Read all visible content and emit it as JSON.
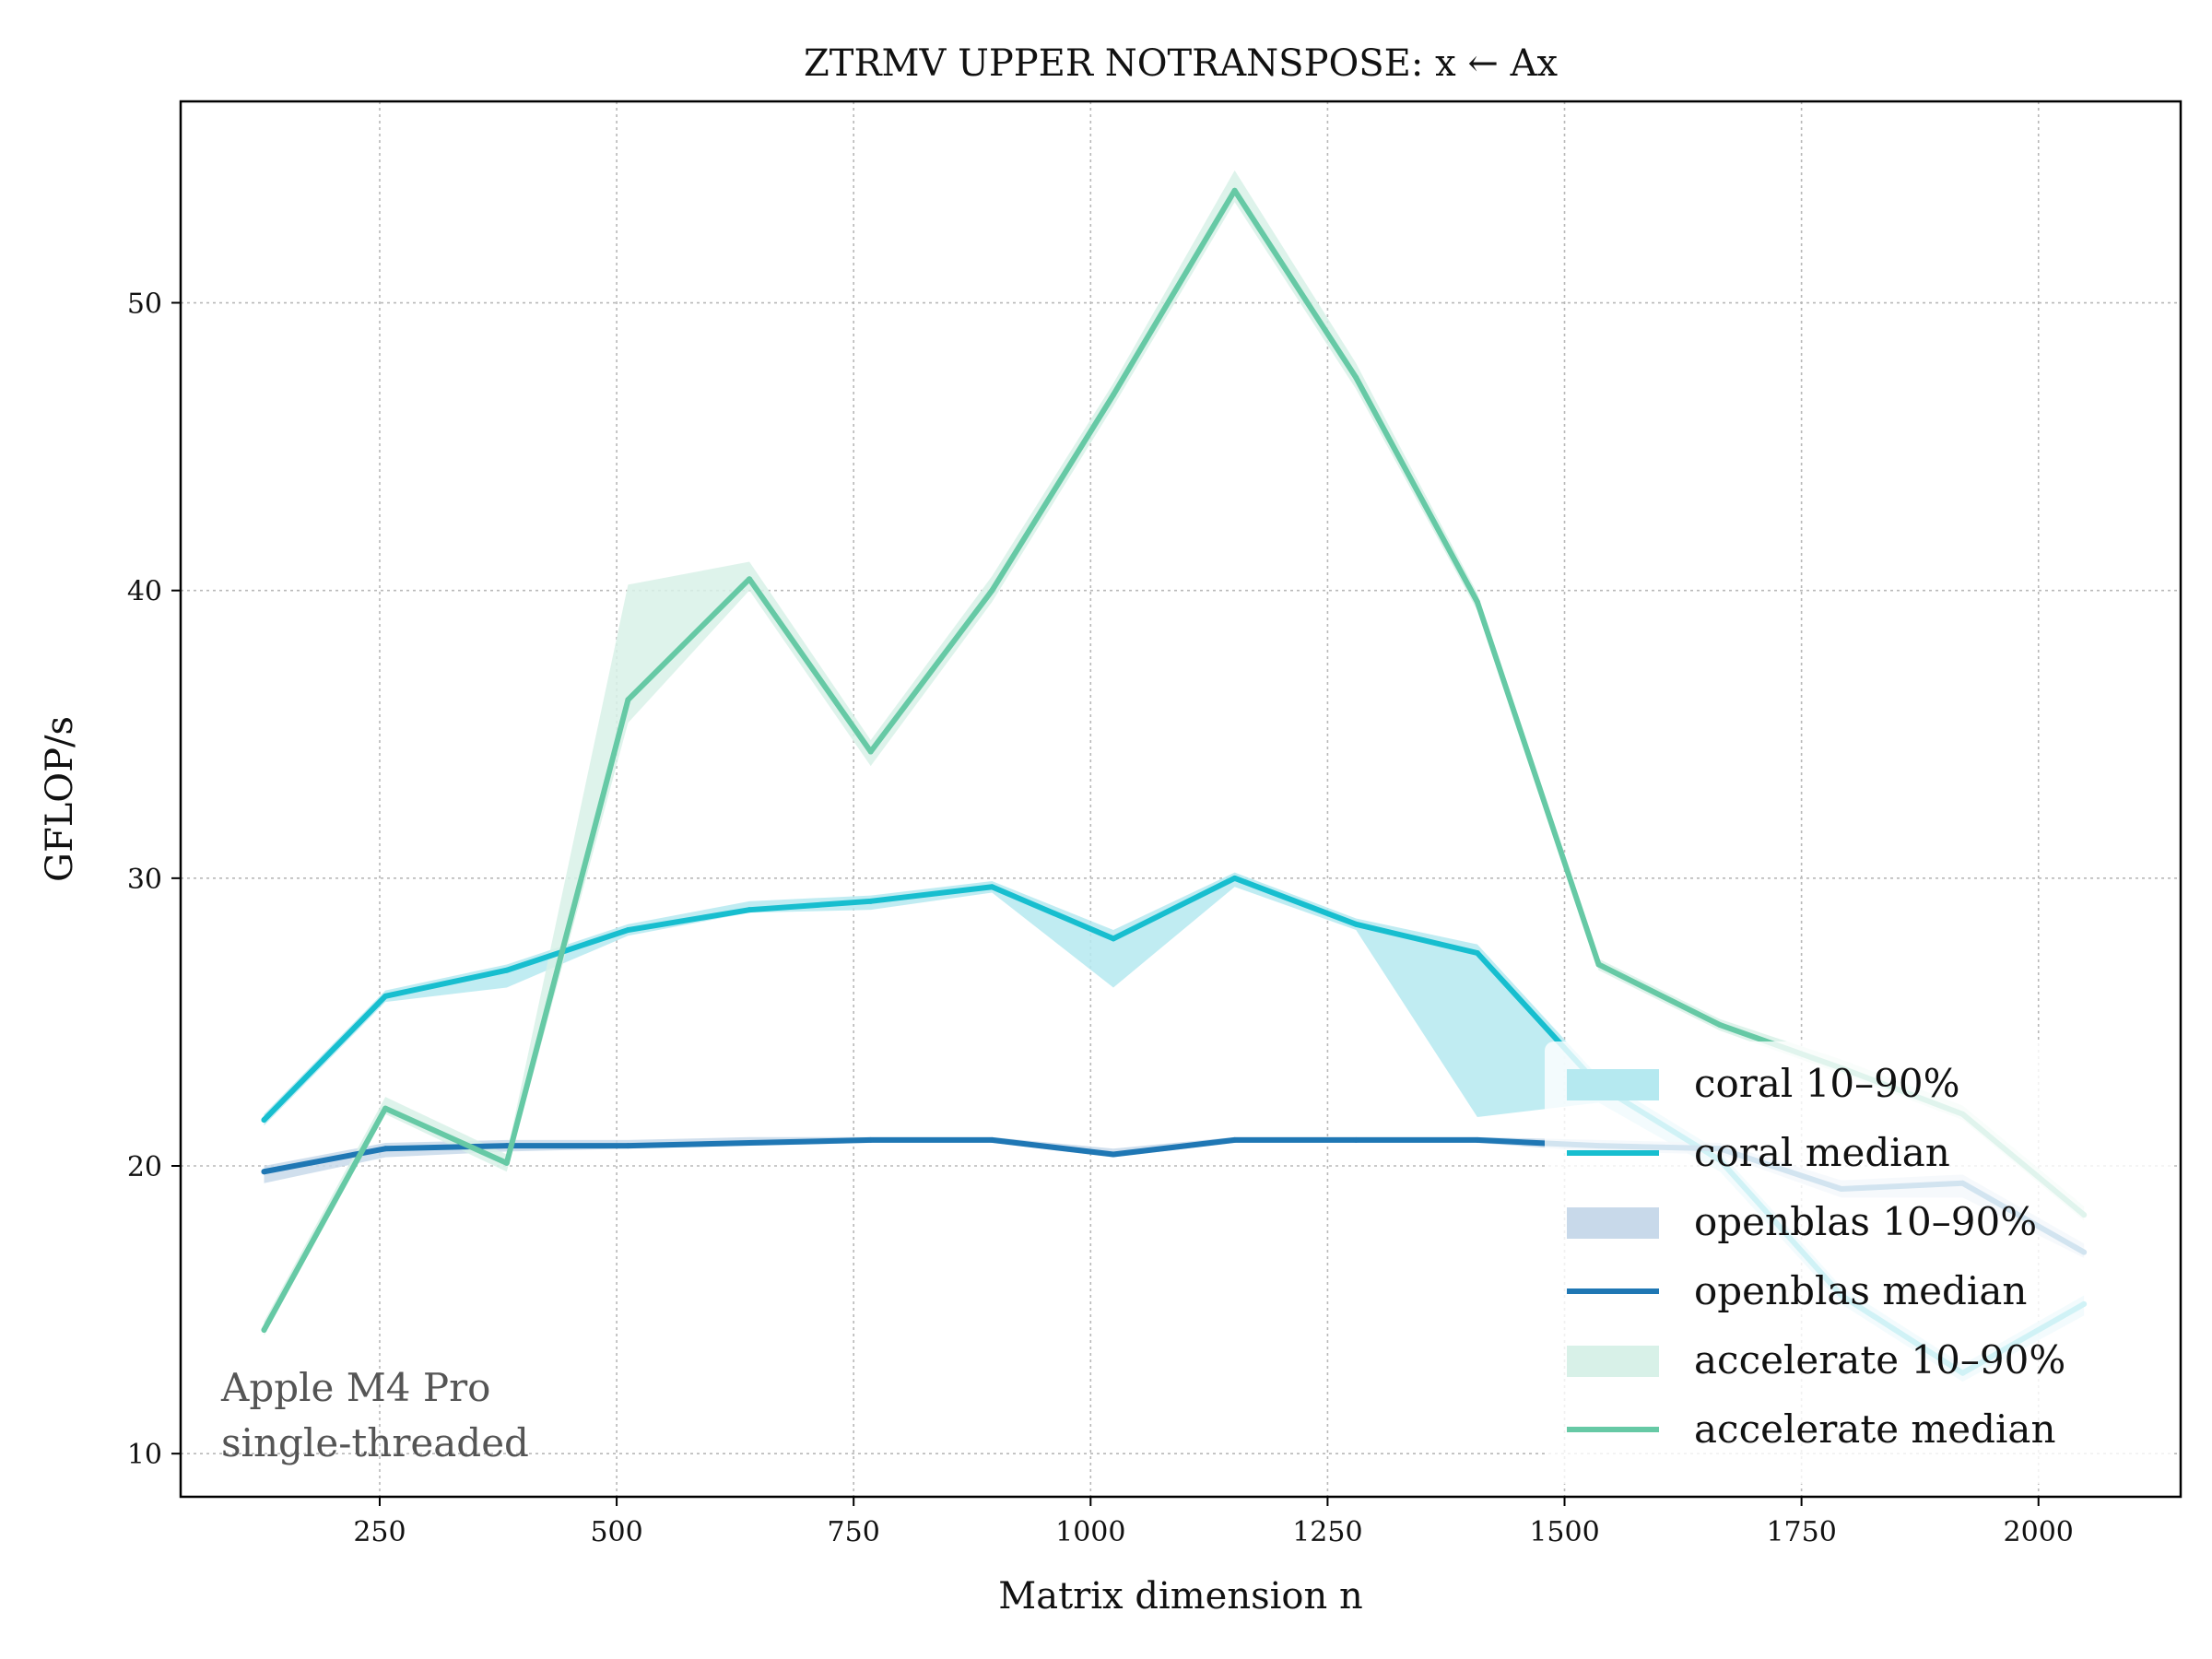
{
  "chart_data": {
    "type": "line",
    "title": "ZTRMV UPPER NOTRANSPOSE: x ← Ax",
    "xlabel": "Matrix dimension n",
    "ylabel": "GFLOP/s",
    "xlim": [
      40,
      2150
    ],
    "ylim": [
      8.5,
      57
    ],
    "xticks": [
      250,
      500,
      750,
      1000,
      1250,
      1500,
      1750,
      2000
    ],
    "yticks": [
      10,
      20,
      30,
      40,
      50
    ],
    "grid": true,
    "legend_position": "lower-right",
    "annotation": [
      "Apple M4 Pro",
      "single-threaded"
    ],
    "x": [
      128,
      256,
      384,
      512,
      640,
      768,
      896,
      1024,
      1152,
      1280,
      1408,
      1536,
      1664,
      1792,
      1920,
      2048
    ],
    "series": [
      {
        "name": "coral median",
        "band_name": "coral 10–90%",
        "color": "#17becf",
        "band_color": "#b5e9f0",
        "median": [
          21.6,
          25.9,
          26.8,
          28.2,
          28.9,
          29.2,
          29.7,
          27.9,
          30.0,
          28.4,
          27.4,
          22.8,
          20.2,
          15.5,
          12.8,
          15.2
        ],
        "p10": [
          21.4,
          25.7,
          26.2,
          28.0,
          28.8,
          28.9,
          29.5,
          26.2,
          29.7,
          28.2,
          21.7,
          22.2,
          19.8,
          15.2,
          12.5,
          14.8
        ],
        "p90": [
          21.8,
          26.1,
          27.0,
          28.4,
          29.2,
          29.4,
          29.9,
          28.2,
          30.2,
          28.6,
          27.7,
          23.1,
          20.5,
          15.8,
          13.1,
          15.5
        ]
      },
      {
        "name": "openblas median",
        "band_name": "openblas 10–90%",
        "color": "#1f77b4",
        "band_color": "#c8d9ea",
        "median": [
          19.8,
          20.6,
          20.7,
          20.7,
          20.8,
          20.9,
          20.9,
          20.4,
          20.9,
          20.9,
          20.9,
          20.7,
          20.6,
          19.2,
          19.4,
          17.0
        ],
        "p10": [
          19.4,
          20.3,
          20.5,
          20.6,
          20.7,
          20.8,
          20.8,
          20.3,
          20.8,
          20.8,
          20.8,
          20.5,
          20.4,
          18.9,
          18.9,
          16.8
        ],
        "p90": [
          20.0,
          20.8,
          20.9,
          20.9,
          21.0,
          21.0,
          21.0,
          20.6,
          21.0,
          21.0,
          21.0,
          20.9,
          20.8,
          19.5,
          19.7,
          17.3
        ]
      },
      {
        "name": "accelerate median",
        "band_name": "accelerate 10–90%",
        "color": "#66c9a5",
        "band_color": "#d8f1e8",
        "median": [
          14.3,
          22.0,
          20.1,
          36.2,
          40.4,
          34.4,
          40.0,
          46.8,
          53.9,
          47.4,
          39.6,
          27.0,
          24.9,
          23.4,
          21.8,
          18.3
        ],
        "p10": [
          14.1,
          21.8,
          19.8,
          35.4,
          40.0,
          33.9,
          39.6,
          46.4,
          53.5,
          47.0,
          39.3,
          26.8,
          24.7,
          23.2,
          21.6,
          18.1
        ],
        "p90": [
          14.6,
          22.4,
          20.4,
          40.2,
          41.0,
          34.8,
          40.5,
          47.2,
          54.6,
          47.9,
          39.9,
          27.2,
          25.1,
          23.7,
          22.1,
          18.6
        ]
      }
    ]
  }
}
